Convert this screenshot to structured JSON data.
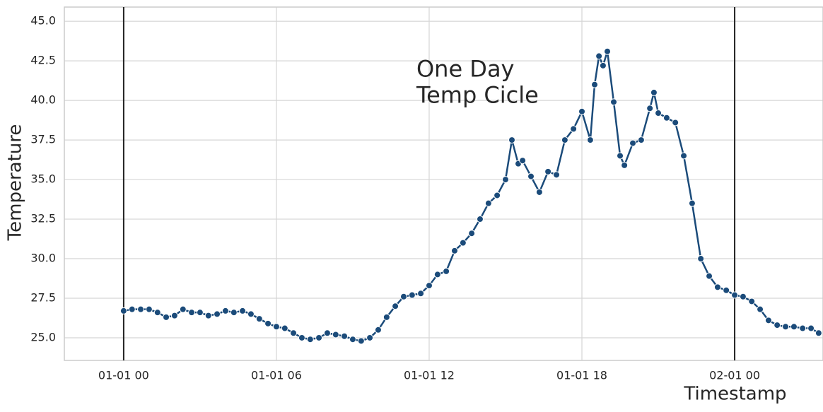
{
  "chart_data": {
    "type": "line",
    "x_label": "Timestamp",
    "y_label": "Temperature",
    "annotation": "One Day\nTemp Cicle",
    "annotation_x": 11.5,
    "annotation_y": 41.1,
    "xlim": [
      -2.33,
      27.47
    ],
    "ylim": [
      23.57,
      45.9
    ],
    "xticks": [
      {
        "value": 0,
        "label": "01-01 00"
      },
      {
        "value": 6,
        "label": "01-01 06"
      },
      {
        "value": 12,
        "label": "01-01 12"
      },
      {
        "value": 18,
        "label": "01-01 18"
      },
      {
        "value": 24,
        "label": "02-01 00"
      }
    ],
    "yticks": [
      {
        "value": 25,
        "label": "25.0"
      },
      {
        "value": 27.5,
        "label": "27.5"
      },
      {
        "value": 30,
        "label": "30.0"
      },
      {
        "value": 32.5,
        "label": "32.5"
      },
      {
        "value": 35,
        "label": "35.0"
      },
      {
        "value": 37.5,
        "label": "37.5"
      },
      {
        "value": 40,
        "label": "40.0"
      },
      {
        "value": 42.5,
        "label": "42.5"
      },
      {
        "value": 45,
        "label": "45.0"
      }
    ],
    "vlines": [
      0,
      24
    ],
    "vline_color": "#222222",
    "grid": true,
    "x": [
      0,
      0.33,
      0.67,
      1,
      1.33,
      1.67,
      2,
      2.33,
      2.67,
      3,
      3.33,
      3.67,
      4,
      4.33,
      4.67,
      5,
      5.33,
      5.67,
      6,
      6.33,
      6.67,
      7,
      7.33,
      7.67,
      8,
      8.33,
      8.67,
      9,
      9.33,
      9.67,
      10,
      10.33,
      10.67,
      11,
      11.33,
      11.67,
      12,
      12.33,
      12.67,
      13,
      13.33,
      13.67,
      14,
      14.33,
      14.67,
      15,
      15.25,
      15.5,
      15.67,
      16,
      16.33,
      16.67,
      17,
      17.33,
      17.67,
      18,
      18.33,
      18.5,
      18.67,
      18.83,
      19,
      19.25,
      19.5,
      19.67,
      20,
      20.33,
      20.67,
      20.83,
      21,
      21.33,
      21.67,
      22,
      22.33,
      22.67,
      23,
      23.33,
      23.67,
      24,
      24.33,
      24.67,
      25,
      25.33,
      25.67,
      26,
      26.33,
      26.67,
      27,
      27.3
    ],
    "series": [
      {
        "name": "Temperature",
        "color": "#1b4b7a",
        "values": [
          26.7,
          26.8,
          26.8,
          26.8,
          26.6,
          26.3,
          26.4,
          26.8,
          26.6,
          26.6,
          26.4,
          26.5,
          26.7,
          26.6,
          26.7,
          26.5,
          26.2,
          25.9,
          25.7,
          25.6,
          25.3,
          25.0,
          24.9,
          25.0,
          25.3,
          25.2,
          25.1,
          24.9,
          24.8,
          25.0,
          25.5,
          26.3,
          27.0,
          27.6,
          27.7,
          27.8,
          28.3,
          29.0,
          29.2,
          30.5,
          31.0,
          31.6,
          32.5,
          33.5,
          34.0,
          35.0,
          37.5,
          36.0,
          36.2,
          35.2,
          34.2,
          35.5,
          35.3,
          37.5,
          38.2,
          39.3,
          37.5,
          41.0,
          42.8,
          42.2,
          43.1,
          39.9,
          36.5,
          35.9,
          37.3,
          37.5,
          39.5,
          40.5,
          39.2,
          38.9,
          38.6,
          36.5,
          33.5,
          30.0,
          28.9,
          28.2,
          28.0,
          27.7,
          27.6,
          27.3,
          26.8,
          26.1,
          25.8,
          25.7,
          25.7,
          25.6,
          25.6,
          25.3
        ]
      }
    ]
  }
}
